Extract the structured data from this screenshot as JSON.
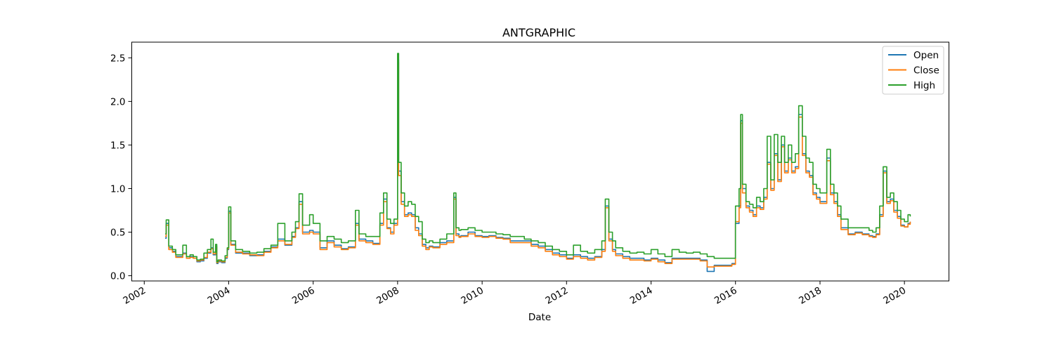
{
  "chart_data": {
    "type": "line",
    "title": "ANTGRAPHIC",
    "xlabel": "Date",
    "ylabel": "",
    "xlim": [
      "2001-09-15",
      "2021-01-20"
    ],
    "ylim": [
      -0.06,
      2.68
    ],
    "x_ticks": [
      "2002",
      "2004",
      "2006",
      "2008",
      "2010",
      "2012",
      "2014",
      "2016",
      "2018",
      "2020"
    ],
    "y_ticks": [
      "0.0",
      "0.5",
      "1.0",
      "1.5",
      "2.0",
      "2.5"
    ],
    "legend": {
      "position": "top-right",
      "entries": [
        "Open",
        "Close",
        "High"
      ]
    },
    "grid": false,
    "colors": {
      "Open": "#1f77b4",
      "Close": "#ff7f0e",
      "High": "#2ca02c"
    },
    "series": [
      {
        "name": "Open",
        "x": [
          "2002-07-01",
          "2002-07-10",
          "2002-08-01",
          "2002-09-01",
          "2002-10-01",
          "2002-11-01",
          "2002-12-01",
          "2003-01-01",
          "2003-02-01",
          "2003-03-01",
          "2003-04-01",
          "2003-05-01",
          "2003-06-01",
          "2003-07-01",
          "2003-08-01",
          "2003-08-20",
          "2003-09-10",
          "2003-09-20",
          "2003-10-01",
          "2003-11-01",
          "2003-12-01",
          "2003-12-20",
          "2004-01-01",
          "2004-01-20",
          "2004-03-01",
          "2004-05-01",
          "2004-07-01",
          "2004-09-01",
          "2004-11-01",
          "2005-01-01",
          "2005-03-01",
          "2005-05-01",
          "2005-07-01",
          "2005-08-01",
          "2005-09-01",
          "2005-10-01",
          "2005-12-01",
          "2006-01-01",
          "2006-03-01",
          "2006-05-01",
          "2006-07-01",
          "2006-09-01",
          "2006-11-01",
          "2007-01-01",
          "2007-02-01",
          "2007-04-01",
          "2007-06-01",
          "2007-08-01",
          "2007-09-01",
          "2007-10-01",
          "2007-11-01",
          "2007-12-01",
          "2008-01-01",
          "2008-01-10",
          "2008-02-01",
          "2008-03-01",
          "2008-04-01",
          "2008-05-01",
          "2008-06-01",
          "2008-07-01",
          "2008-08-01",
          "2008-09-01",
          "2008-10-01",
          "2008-11-01",
          "2009-01-01",
          "2009-03-01",
          "2009-05-01",
          "2009-05-20",
          "2009-06-15",
          "2009-07-01",
          "2009-09-01",
          "2009-11-01",
          "2010-01-01",
          "2010-03-01",
          "2010-05-01",
          "2010-07-01",
          "2010-09-01",
          "2010-11-01",
          "2011-01-01",
          "2011-03-01",
          "2011-05-01",
          "2011-07-01",
          "2011-09-01",
          "2011-11-01",
          "2012-01-01",
          "2012-03-01",
          "2012-05-01",
          "2012-07-01",
          "2012-09-01",
          "2012-11-01",
          "2012-12-01",
          "2013-01-01",
          "2013-02-01",
          "2013-03-01",
          "2013-05-01",
          "2013-07-01",
          "2013-09-01",
          "2013-11-01",
          "2014-01-01",
          "2014-03-01",
          "2014-05-01",
          "2014-07-01",
          "2014-09-01",
          "2014-11-01",
          "2015-01-01",
          "2015-03-01",
          "2015-05-01",
          "2015-07-01",
          "2015-09-01",
          "2015-11-01",
          "2015-12-01",
          "2016-01-01",
          "2016-02-01",
          "2016-02-15",
          "2016-03-01",
          "2016-04-01",
          "2016-05-01",
          "2016-06-01",
          "2016-07-01",
          "2016-08-01",
          "2016-09-01",
          "2016-10-01",
          "2016-11-01",
          "2016-12-01",
          "2017-01-01",
          "2017-02-01",
          "2017-03-01",
          "2017-04-01",
          "2017-05-01",
          "2017-06-01",
          "2017-07-01",
          "2017-08-01",
          "2017-09-01",
          "2017-10-01",
          "2017-11-01",
          "2017-12-01",
          "2018-01-01",
          "2018-02-01",
          "2018-03-01",
          "2018-04-01",
          "2018-05-01",
          "2018-06-01",
          "2018-07-01",
          "2018-09-01",
          "2018-11-01",
          "2019-01-01",
          "2019-03-01",
          "2019-04-01",
          "2019-05-01",
          "2019-06-01",
          "2019-07-01",
          "2019-08-01",
          "2019-09-01",
          "2019-10-01",
          "2019-11-01",
          "2019-12-01",
          "2020-01-01",
          "2020-02-01",
          "2020-02-20"
        ],
        "y": [
          0.43,
          0.6,
          0.32,
          0.28,
          0.22,
          0.22,
          0.26,
          0.2,
          0.22,
          0.2,
          0.16,
          0.17,
          0.2,
          0.26,
          0.32,
          0.24,
          0.34,
          0.14,
          0.16,
          0.15,
          0.2,
          0.3,
          0.74,
          0.36,
          0.26,
          0.26,
          0.23,
          0.24,
          0.28,
          0.33,
          0.42,
          0.35,
          0.45,
          0.55,
          0.85,
          0.5,
          0.52,
          0.5,
          0.32,
          0.4,
          0.35,
          0.31,
          0.33,
          0.6,
          0.42,
          0.4,
          0.37,
          0.6,
          0.88,
          0.55,
          0.5,
          0.6,
          2.48,
          1.2,
          0.85,
          0.7,
          0.72,
          0.7,
          0.55,
          0.48,
          0.36,
          0.32,
          0.34,
          0.33,
          0.38,
          0.4,
          0.9,
          0.48,
          0.45,
          0.46,
          0.5,
          0.46,
          0.45,
          0.46,
          0.44,
          0.43,
          0.4,
          0.4,
          0.4,
          0.36,
          0.34,
          0.3,
          0.26,
          0.24,
          0.2,
          0.24,
          0.22,
          0.2,
          0.22,
          0.3,
          0.8,
          0.42,
          0.3,
          0.25,
          0.22,
          0.2,
          0.2,
          0.18,
          0.2,
          0.18,
          0.15,
          0.2,
          0.2,
          0.2,
          0.2,
          0.18,
          0.05,
          0.12,
          0.12,
          0.12,
          0.14,
          0.6,
          0.8,
          1.78,
          1.0,
          0.8,
          0.75,
          0.7,
          0.8,
          0.78,
          0.9,
          1.3,
          1.0,
          1.4,
          1.1,
          1.5,
          1.2,
          1.35,
          1.2,
          1.25,
          1.85,
          1.4,
          1.2,
          1.15,
          0.95,
          0.9,
          0.85,
          0.85,
          1.35,
          0.95,
          0.85,
          0.7,
          0.55,
          0.48,
          0.5,
          0.48,
          0.46,
          0.45,
          0.48,
          0.7,
          1.2,
          0.85,
          0.88,
          0.75,
          0.68,
          0.58,
          0.56,
          0.6,
          0.62
        ]
      },
      {
        "name": "Close",
        "x": [
          "2002-07-01",
          "2002-07-10",
          "2002-08-01",
          "2002-09-01",
          "2002-10-01",
          "2002-11-01",
          "2002-12-01",
          "2003-01-01",
          "2003-02-01",
          "2003-03-01",
          "2003-04-01",
          "2003-05-01",
          "2003-06-01",
          "2003-07-01",
          "2003-08-01",
          "2003-08-20",
          "2003-09-10",
          "2003-09-20",
          "2003-10-01",
          "2003-11-01",
          "2003-12-01",
          "2003-12-20",
          "2004-01-01",
          "2004-01-20",
          "2004-03-01",
          "2004-05-01",
          "2004-07-01",
          "2004-09-01",
          "2004-11-01",
          "2005-01-01",
          "2005-03-01",
          "2005-05-01",
          "2005-07-01",
          "2005-08-01",
          "2005-09-01",
          "2005-10-01",
          "2005-12-01",
          "2006-01-01",
          "2006-03-01",
          "2006-05-01",
          "2006-07-01",
          "2006-09-01",
          "2006-11-01",
          "2007-01-01",
          "2007-02-01",
          "2007-04-01",
          "2007-06-01",
          "2007-08-01",
          "2007-09-01",
          "2007-10-01",
          "2007-11-01",
          "2007-12-01",
          "2008-01-01",
          "2008-01-10",
          "2008-02-01",
          "2008-03-01",
          "2008-04-01",
          "2008-05-01",
          "2008-06-01",
          "2008-07-01",
          "2008-08-01",
          "2008-09-01",
          "2008-10-01",
          "2008-11-01",
          "2009-01-01",
          "2009-03-01",
          "2009-05-01",
          "2009-05-20",
          "2009-06-15",
          "2009-07-01",
          "2009-09-01",
          "2009-11-01",
          "2010-01-01",
          "2010-03-01",
          "2010-05-01",
          "2010-07-01",
          "2010-09-01",
          "2010-11-01",
          "2011-01-01",
          "2011-03-01",
          "2011-05-01",
          "2011-07-01",
          "2011-09-01",
          "2011-11-01",
          "2012-01-01",
          "2012-03-01",
          "2012-05-01",
          "2012-07-01",
          "2012-09-01",
          "2012-11-01",
          "2012-12-01",
          "2013-01-01",
          "2013-02-01",
          "2013-03-01",
          "2013-05-01",
          "2013-07-01",
          "2013-09-01",
          "2013-11-01",
          "2014-01-01",
          "2014-03-01",
          "2014-05-01",
          "2014-07-01",
          "2014-09-01",
          "2014-11-01",
          "2015-01-01",
          "2015-03-01",
          "2015-05-01",
          "2015-07-01",
          "2015-09-01",
          "2015-11-01",
          "2015-12-01",
          "2016-01-01",
          "2016-02-01",
          "2016-02-15",
          "2016-03-01",
          "2016-04-01",
          "2016-05-01",
          "2016-06-01",
          "2016-07-01",
          "2016-08-01",
          "2016-09-01",
          "2016-10-01",
          "2016-11-01",
          "2016-12-01",
          "2017-01-01",
          "2017-02-01",
          "2017-03-01",
          "2017-04-01",
          "2017-05-01",
          "2017-06-01",
          "2017-07-01",
          "2017-08-01",
          "2017-09-01",
          "2017-10-01",
          "2017-11-01",
          "2017-12-01",
          "2018-01-01",
          "2018-02-01",
          "2018-03-01",
          "2018-04-01",
          "2018-05-01",
          "2018-06-01",
          "2018-07-01",
          "2018-09-01",
          "2018-11-01",
          "2019-01-01",
          "2019-03-01",
          "2019-04-01",
          "2019-05-01",
          "2019-06-01",
          "2019-07-01",
          "2019-08-01",
          "2019-09-01",
          "2019-10-01",
          "2019-11-01",
          "2019-12-01",
          "2020-01-01",
          "2020-02-01",
          "2020-02-20"
        ],
        "y": [
          0.45,
          0.58,
          0.3,
          0.27,
          0.21,
          0.21,
          0.25,
          0.2,
          0.21,
          0.2,
          0.17,
          0.18,
          0.21,
          0.27,
          0.31,
          0.25,
          0.33,
          0.15,
          0.17,
          0.16,
          0.21,
          0.31,
          0.72,
          0.35,
          0.27,
          0.25,
          0.24,
          0.23,
          0.27,
          0.32,
          0.4,
          0.36,
          0.44,
          0.54,
          0.82,
          0.48,
          0.5,
          0.48,
          0.3,
          0.38,
          0.33,
          0.3,
          0.32,
          0.58,
          0.4,
          0.38,
          0.36,
          0.58,
          0.85,
          0.54,
          0.48,
          0.58,
          2.45,
          1.15,
          0.82,
          0.68,
          0.7,
          0.68,
          0.52,
          0.46,
          0.34,
          0.3,
          0.33,
          0.32,
          0.36,
          0.38,
          0.88,
          0.46,
          0.44,
          0.45,
          0.48,
          0.45,
          0.44,
          0.45,
          0.43,
          0.42,
          0.38,
          0.38,
          0.38,
          0.34,
          0.32,
          0.28,
          0.24,
          0.22,
          0.19,
          0.22,
          0.2,
          0.18,
          0.21,
          0.28,
          0.78,
          0.4,
          0.28,
          0.23,
          0.2,
          0.18,
          0.18,
          0.17,
          0.19,
          0.16,
          0.14,
          0.19,
          0.19,
          0.19,
          0.19,
          0.17,
          0.1,
          0.11,
          0.11,
          0.11,
          0.13,
          0.62,
          0.78,
          1.75,
          0.95,
          0.78,
          0.73,
          0.68,
          0.78,
          0.76,
          0.88,
          1.28,
          0.98,
          1.38,
          1.08,
          1.48,
          1.18,
          1.33,
          1.18,
          1.23,
          1.82,
          1.38,
          1.18,
          1.13,
          0.93,
          0.88,
          0.83,
          0.83,
          1.32,
          0.93,
          0.83,
          0.68,
          0.53,
          0.47,
          0.49,
          0.47,
          0.45,
          0.44,
          0.47,
          0.68,
          1.18,
          0.83,
          0.86,
          0.73,
          0.66,
          0.57,
          0.56,
          0.59,
          0.62
        ]
      },
      {
        "name": "High",
        "x": [
          "2002-07-01",
          "2002-07-10",
          "2002-08-01",
          "2002-09-01",
          "2002-10-01",
          "2002-11-01",
          "2002-12-01",
          "2003-01-01",
          "2003-02-01",
          "2003-03-01",
          "2003-04-01",
          "2003-05-01",
          "2003-06-01",
          "2003-07-01",
          "2003-08-01",
          "2003-08-20",
          "2003-09-10",
          "2003-09-20",
          "2003-10-01",
          "2003-11-01",
          "2003-12-01",
          "2003-12-20",
          "2004-01-01",
          "2004-01-20",
          "2004-03-01",
          "2004-05-01",
          "2004-07-01",
          "2004-09-01",
          "2004-11-01",
          "2005-01-01",
          "2005-03-01",
          "2005-05-01",
          "2005-07-01",
          "2005-08-01",
          "2005-09-01",
          "2005-10-01",
          "2005-12-01",
          "2006-01-01",
          "2006-03-01",
          "2006-05-01",
          "2006-07-01",
          "2006-09-01",
          "2006-11-01",
          "2007-01-01",
          "2007-02-01",
          "2007-04-01",
          "2007-06-01",
          "2007-08-01",
          "2007-09-01",
          "2007-10-01",
          "2007-11-01",
          "2007-12-01",
          "2008-01-01",
          "2008-01-10",
          "2008-02-01",
          "2008-03-01",
          "2008-04-01",
          "2008-05-01",
          "2008-06-01",
          "2008-07-01",
          "2008-08-01",
          "2008-09-01",
          "2008-10-01",
          "2008-11-01",
          "2009-01-01",
          "2009-03-01",
          "2009-05-01",
          "2009-05-20",
          "2009-06-15",
          "2009-07-01",
          "2009-09-01",
          "2009-11-01",
          "2010-01-01",
          "2010-03-01",
          "2010-05-01",
          "2010-07-01",
          "2010-09-01",
          "2010-11-01",
          "2011-01-01",
          "2011-03-01",
          "2011-05-01",
          "2011-07-01",
          "2011-09-01",
          "2011-11-01",
          "2012-01-01",
          "2012-03-01",
          "2012-05-01",
          "2012-07-01",
          "2012-09-01",
          "2012-11-01",
          "2012-12-01",
          "2013-01-01",
          "2013-02-01",
          "2013-03-01",
          "2013-05-01",
          "2013-07-01",
          "2013-09-01",
          "2013-11-01",
          "2014-01-01",
          "2014-03-01",
          "2014-05-01",
          "2014-07-01",
          "2014-09-01",
          "2014-11-01",
          "2015-01-01",
          "2015-03-01",
          "2015-05-01",
          "2015-07-01",
          "2015-09-01",
          "2015-11-01",
          "2015-12-01",
          "2016-01-01",
          "2016-02-01",
          "2016-02-15",
          "2016-03-01",
          "2016-04-01",
          "2016-05-01",
          "2016-06-01",
          "2016-07-01",
          "2016-08-01",
          "2016-09-01",
          "2016-10-01",
          "2016-11-01",
          "2016-12-01",
          "2017-01-01",
          "2017-02-01",
          "2017-03-01",
          "2017-04-01",
          "2017-05-01",
          "2017-06-01",
          "2017-07-01",
          "2017-08-01",
          "2017-09-01",
          "2017-10-01",
          "2017-11-01",
          "2017-12-01",
          "2018-01-01",
          "2018-02-01",
          "2018-03-01",
          "2018-04-01",
          "2018-05-01",
          "2018-06-01",
          "2018-07-01",
          "2018-09-01",
          "2018-11-01",
          "2019-01-01",
          "2019-03-01",
          "2019-04-01",
          "2019-05-01",
          "2019-06-01",
          "2019-07-01",
          "2019-08-01",
          "2019-09-01",
          "2019-10-01",
          "2019-11-01",
          "2019-12-01",
          "2020-01-01",
          "2020-02-01",
          "2020-02-20"
        ],
        "y": [
          0.48,
          0.64,
          0.34,
          0.3,
          0.24,
          0.24,
          0.35,
          0.22,
          0.24,
          0.22,
          0.18,
          0.19,
          0.26,
          0.3,
          0.42,
          0.27,
          0.36,
          0.16,
          0.18,
          0.17,
          0.23,
          0.32,
          0.79,
          0.4,
          0.3,
          0.28,
          0.26,
          0.27,
          0.31,
          0.35,
          0.6,
          0.4,
          0.5,
          0.62,
          0.94,
          0.58,
          0.7,
          0.6,
          0.4,
          0.45,
          0.42,
          0.38,
          0.4,
          0.75,
          0.48,
          0.45,
          0.45,
          0.72,
          0.95,
          0.65,
          0.6,
          0.65,
          2.55,
          1.3,
          0.95,
          0.8,
          0.85,
          0.82,
          0.68,
          0.62,
          0.42,
          0.38,
          0.4,
          0.38,
          0.42,
          0.48,
          0.95,
          0.55,
          0.52,
          0.53,
          0.55,
          0.52,
          0.5,
          0.5,
          0.48,
          0.47,
          0.45,
          0.45,
          0.42,
          0.4,
          0.38,
          0.34,
          0.3,
          0.28,
          0.24,
          0.35,
          0.28,
          0.26,
          0.3,
          0.4,
          0.88,
          0.5,
          0.4,
          0.32,
          0.28,
          0.26,
          0.27,
          0.25,
          0.3,
          0.25,
          0.22,
          0.3,
          0.27,
          0.26,
          0.27,
          0.25,
          0.22,
          0.2,
          0.2,
          0.2,
          0.2,
          0.8,
          1.0,
          1.85,
          1.05,
          0.85,
          0.82,
          0.78,
          0.9,
          0.85,
          1.0,
          1.6,
          1.1,
          1.62,
          1.3,
          1.6,
          1.3,
          1.5,
          1.3,
          1.4,
          1.95,
          1.6,
          1.35,
          1.3,
          1.05,
          1.0,
          0.95,
          0.95,
          1.45,
          1.05,
          0.95,
          0.8,
          0.65,
          0.55,
          0.55,
          0.55,
          0.52,
          0.5,
          0.55,
          0.8,
          1.25,
          0.9,
          0.95,
          0.85,
          0.75,
          0.65,
          0.62,
          0.7,
          0.68
        ]
      }
    ]
  }
}
